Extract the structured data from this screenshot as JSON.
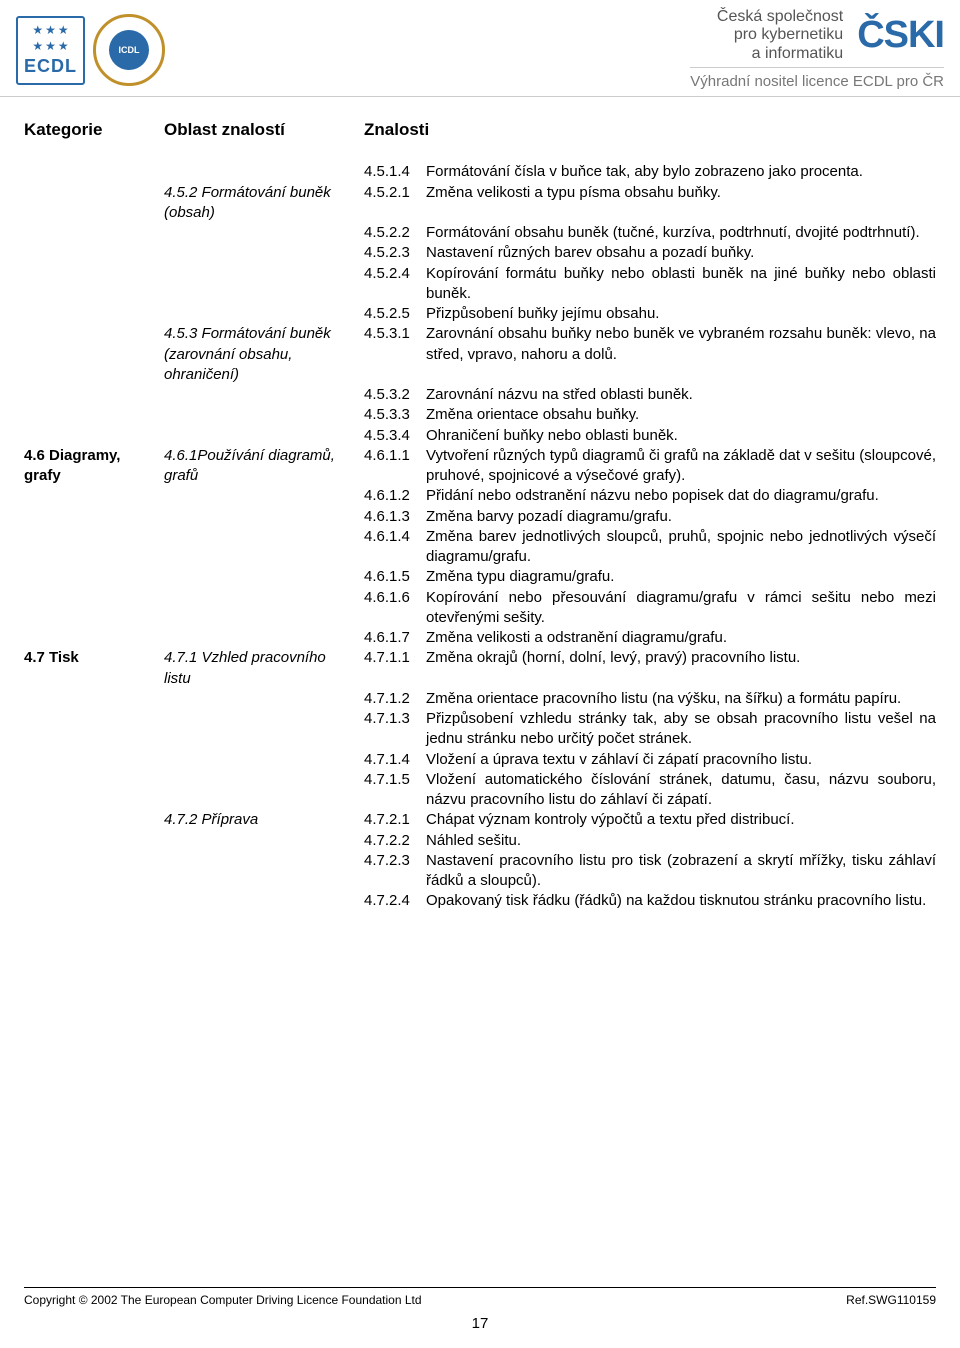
{
  "header": {
    "ecdl_label": "ECDL",
    "circle_text": "ICDL",
    "org_line1": "Česká společnost",
    "org_line2": "pro kybernetiku",
    "org_line3": "a informatiku",
    "cski": "ČSKI",
    "tagline": "Výhradní nositel licence ECDL pro ČR"
  },
  "columns": {
    "cat": "Kategorie",
    "area": "Oblast znalostí",
    "know": "Znalosti"
  },
  "rows": [
    {
      "cat": "",
      "area": "",
      "num": "4.5.1.4",
      "desc": "Formátování čísla v buňce tak, aby bylo zobrazeno jako procenta."
    },
    {
      "cat": "",
      "area": "4.5.2 Formátování buněk (obsah)",
      "num": "4.5.2.1",
      "desc": "Změna velikosti a typu písma obsahu buňky."
    },
    {
      "cat": "",
      "area": "",
      "num": "4.5.2.2",
      "desc": "Formátování obsahu buněk (tučné, kurzíva, podtrhnutí, dvojité podtrhnutí)."
    },
    {
      "cat": "",
      "area": "",
      "num": "4.5.2.3",
      "desc": "Nastavení různých barev obsahu a pozadí buňky."
    },
    {
      "cat": "",
      "area": "",
      "num": "4.5.2.4",
      "desc": "Kopírování formátu buňky nebo oblasti buněk na jiné buňky nebo oblasti buněk."
    },
    {
      "cat": "",
      "area": "",
      "num": "4.5.2.5",
      "desc": "Přizpůsobení buňky jejímu obsahu."
    },
    {
      "cat": "",
      "area": "4.5.3 Formátování buněk (zarovnání obsahu, ohraničení)",
      "num": "4.5.3.1",
      "desc": "Zarovnání obsahu buňky nebo buněk ve vybraném rozsahu buněk: vlevo, na střed, vpravo, nahoru a dolů."
    },
    {
      "cat": "",
      "area": "",
      "num": "4.5.3.2",
      "desc": "Zarovnání názvu na střed oblasti buněk."
    },
    {
      "cat": "",
      "area": "",
      "num": "4.5.3.3",
      "desc": "Změna orientace obsahu buňky."
    },
    {
      "cat": "",
      "area": "",
      "num": "4.5.3.4",
      "desc": "Ohraničení buňky nebo oblasti buněk."
    },
    {
      "cat": "4.6 Diagramy, grafy",
      "area": "4.6.1Používání diagramů, grafů",
      "num": "4.6.1.1",
      "desc": "Vytvoření různých typů diagramů či grafů na základě dat v sešitu (sloupcové, pruhové, spojnicové a výsečové grafy)."
    },
    {
      "cat": "",
      "area": "",
      "num": "4.6.1.2",
      "desc": "Přidání nebo odstranění názvu nebo popisek dat do diagramu/grafu."
    },
    {
      "cat": "",
      "area": "",
      "num": "4.6.1.3",
      "desc": "Změna barvy pozadí diagramu/grafu."
    },
    {
      "cat": "",
      "area": "",
      "num": "4.6.1.4",
      "desc": "Změna barev jednotlivých sloupců, pruhů, spojnic nebo jednotlivých výsečí diagramu/grafu."
    },
    {
      "cat": "",
      "area": "",
      "num": "4.6.1.5",
      "desc": "Změna typu diagramu/grafu."
    },
    {
      "cat": "",
      "area": "",
      "num": "4.6.1.6",
      "desc": "Kopírování nebo přesouvání diagramu/grafu v rámci sešitu nebo mezi otevřenými sešity."
    },
    {
      "cat": "",
      "area": "",
      "num": "4.6.1.7",
      "desc": "Změna velikosti a odstranění diagramu/grafu."
    },
    {
      "cat": "4.7 Tisk",
      "area": "4.7.1 Vzhled pracovního listu",
      "num": "4.7.1.1",
      "desc": "Změna okrajů (horní, dolní, levý, pravý) pracovního listu."
    },
    {
      "cat": "",
      "area": "",
      "num": "4.7.1.2",
      "desc": "Změna orientace pracovního listu (na výšku, na šířku) a formátu papíru."
    },
    {
      "cat": "",
      "area": "",
      "num": "4.7.1.3",
      "desc": "Přizpůsobení vzhledu stránky tak, aby se obsah pracovního listu vešel na jednu stránku nebo určitý počet stránek."
    },
    {
      "cat": "",
      "area": "",
      "num": "4.7.1.4",
      "desc": "Vložení a úprava textu v záhlaví či zápatí pracovního listu."
    },
    {
      "cat": "",
      "area": "",
      "num": "4.7.1.5",
      "desc": "Vložení automatického číslování stránek, datumu, času, názvu souboru, názvu pracovního listu do záhlaví či zápatí."
    },
    {
      "cat": "",
      "area": "4.7.2 Příprava",
      "num": "4.7.2.1",
      "desc": "Chápat význam kontroly výpočtů a textu před distribucí."
    },
    {
      "cat": "",
      "area": "",
      "num": "4.7.2.2",
      "desc": "Náhled sešitu."
    },
    {
      "cat": "",
      "area": "",
      "num": "4.7.2.3",
      "desc": "Nastavení pracovního listu pro tisk (zobrazení a skrytí mřížky, tisku záhlaví řádků a sloupců)."
    },
    {
      "cat": "",
      "area": "",
      "num": "4.7.2.4",
      "desc": "Opakovaný tisk řádku (řádků) na každou tisknutou stránku pracovního listu."
    }
  ],
  "footer": {
    "copyright": "Copyright © 2002 The European Computer Driving Licence Foundation Ltd",
    "ref": "Ref.SWG110159",
    "page": "17"
  }
}
